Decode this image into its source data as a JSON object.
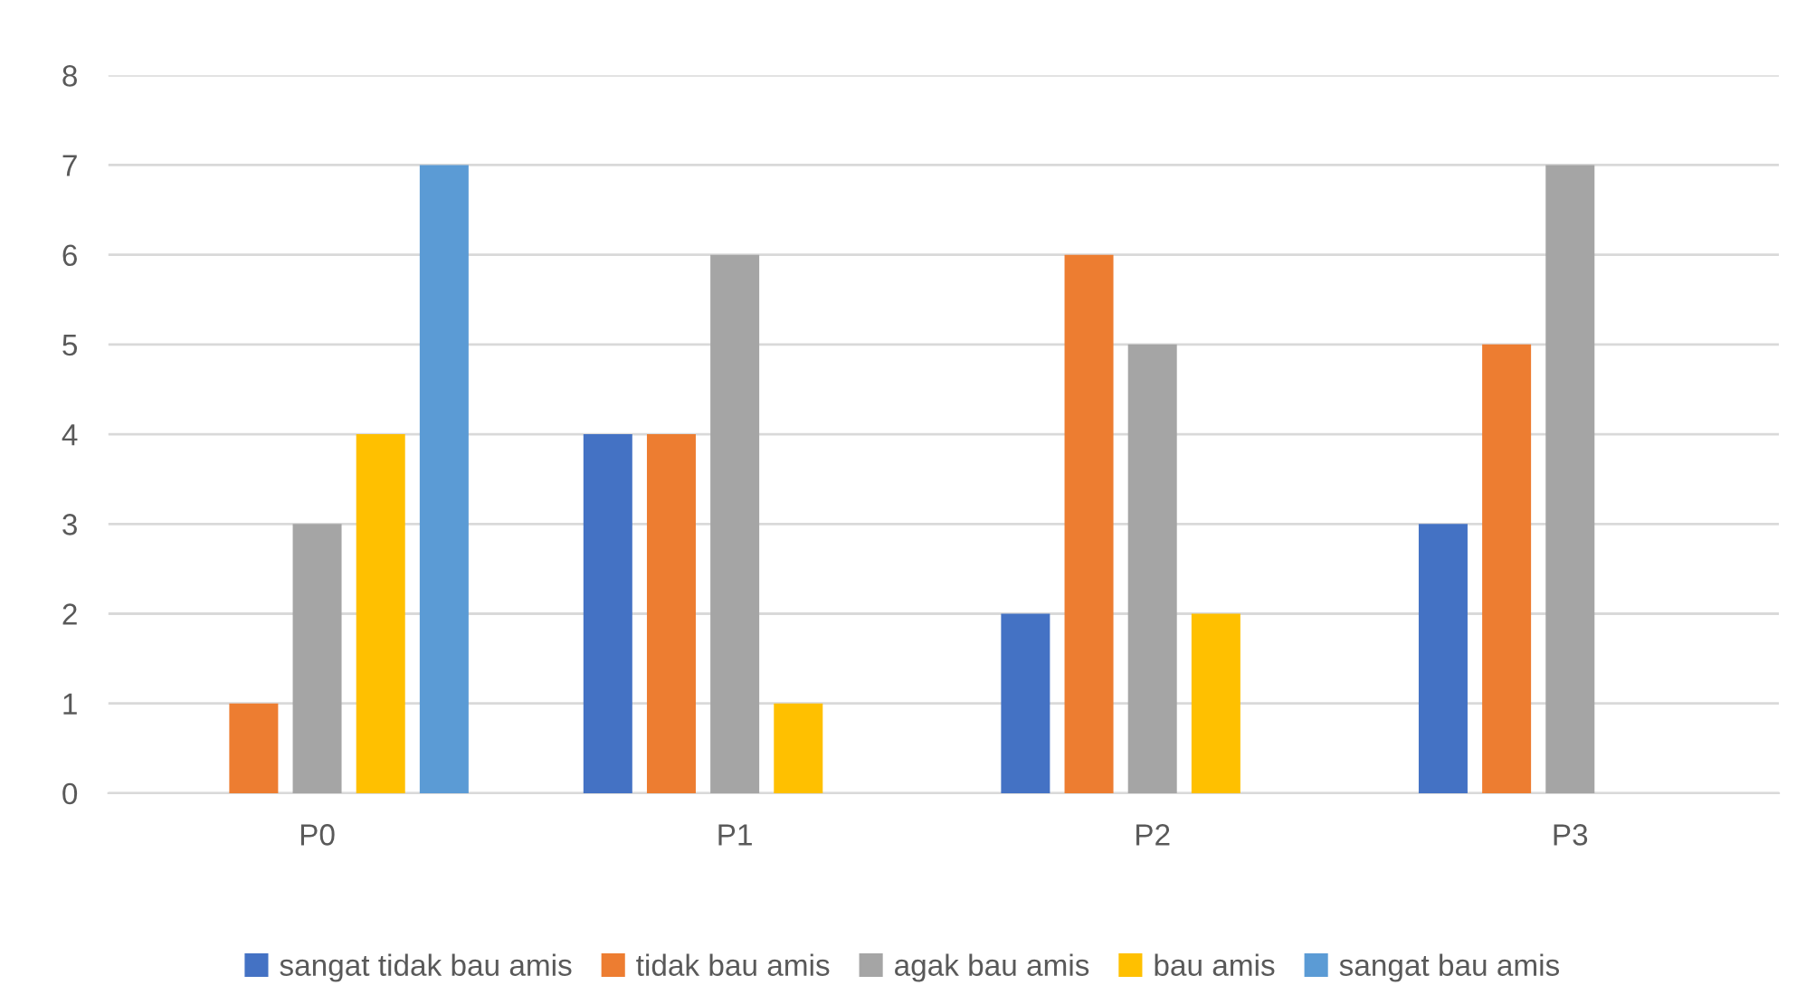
{
  "chart_data": {
    "type": "bar",
    "categories": [
      "P0",
      "P1",
      "P2",
      "P3"
    ],
    "series": [
      {
        "name": "sangat tidak bau amis",
        "color": "#4472c4",
        "values": [
          0,
          4,
          2,
          3
        ]
      },
      {
        "name": "tidak bau amis",
        "color": "#ed7d31",
        "values": [
          1,
          4,
          6,
          5
        ]
      },
      {
        "name": "agak bau amis",
        "color": "#a5a5a5",
        "values": [
          3,
          6,
          5,
          7
        ]
      },
      {
        "name": "bau amis",
        "color": "#ffc000",
        "values": [
          4,
          1,
          2,
          0
        ]
      },
      {
        "name": "sangat bau amis",
        "color": "#5b9bd5",
        "values": [
          7,
          0,
          0,
          0
        ]
      }
    ],
    "ylim": [
      0,
      8
    ],
    "yticks": [
      0,
      1,
      2,
      3,
      4,
      5,
      6,
      7,
      8
    ],
    "grid": "y",
    "legend": "bottom"
  }
}
